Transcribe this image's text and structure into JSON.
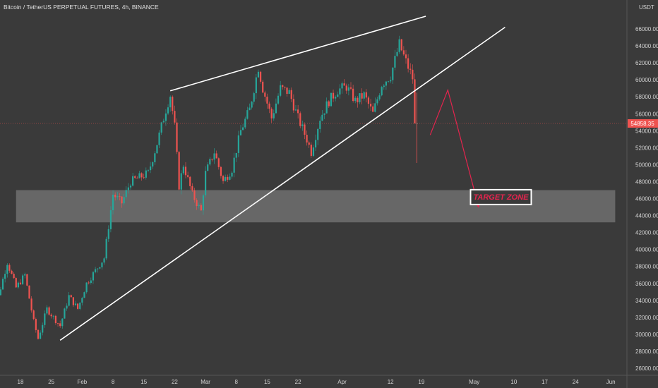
{
  "header": {
    "title": "Bitcoin / TetherUS PERPETUAL FUTURES, 4h, BINANCE"
  },
  "colors": {
    "background": "#3a3a3a",
    "up": "#26a69a",
    "down": "#ef5350",
    "trendline": "#ffffff",
    "arrow": "#e5244e",
    "zone_fill": "#777777",
    "price_label": "#ef5350"
  },
  "chart_data": {
    "type": "candlestick",
    "title": "Bitcoin / TetherUS PERPETUAL FUTURES, 4h, BINANCE",
    "ylabel": "USDT",
    "ylim": [
      25000,
      68000
    ],
    "y_ticks": [
      "26000.00",
      "28000.00",
      "30000.00",
      "32000.00",
      "34000.00",
      "36000.00",
      "38000.00",
      "40000.00",
      "42000.00",
      "44000.00",
      "46000.00",
      "48000.00",
      "50000.00",
      "52000.00",
      "54000.00",
      "56000.00",
      "58000.00",
      "60000.00",
      "62000.00",
      "64000.00",
      "66000.00"
    ],
    "x_ticks": [
      "18",
      "25",
      "Feb",
      "8",
      "15",
      "22",
      "Mar",
      "8",
      "15",
      "22",
      "Apr",
      "12",
      "19",
      "May",
      "10",
      "17",
      "24",
      "Jun"
    ],
    "current_price": "54858.35",
    "price_path": [
      [
        "Jan 11",
        39500
      ],
      [
        "Jan 13",
        34500
      ],
      [
        "Jan 15",
        38500
      ],
      [
        "Jan 17",
        35500
      ],
      [
        "Jan 19",
        37000
      ],
      [
        "Jan 21",
        31500
      ],
      [
        "Jan 22",
        29500
      ],
      [
        "Jan 24",
        33000
      ],
      [
        "Jan 27",
        31000
      ],
      [
        "Jan 29",
        34500
      ],
      [
        "Jan 31",
        33000
      ],
      [
        "Feb 2",
        36000
      ],
      [
        "Feb 4",
        37500
      ],
      [
        "Feb 6",
        39000
      ],
      [
        "Feb 8",
        46500
      ],
      [
        "Feb 10",
        45500
      ],
      [
        "Feb 12",
        48000
      ],
      [
        "Feb 14",
        48500
      ],
      [
        "Feb 16",
        49000
      ],
      [
        "Feb 18",
        52500
      ],
      [
        "Feb 20",
        56500
      ],
      [
        "Feb 21",
        58200
      ],
      [
        "Feb 22",
        54500
      ],
      [
        "Feb 23",
        47500
      ],
      [
        "Feb 24",
        50000
      ],
      [
        "Feb 26",
        46500
      ],
      [
        "Feb 28",
        44500
      ],
      [
        "Mar 1",
        49000
      ],
      [
        "Mar 3",
        51500
      ],
      [
        "Mar 5",
        48000
      ],
      [
        "Mar 7",
        49500
      ],
      [
        "Mar 9",
        54000
      ],
      [
        "Mar 11",
        56500
      ],
      [
        "Mar 13",
        61500
      ],
      [
        "Mar 14",
        59000
      ],
      [
        "Mar 16",
        55500
      ],
      [
        "Mar 18",
        59000
      ],
      [
        "Mar 20",
        58500
      ],
      [
        "Mar 22",
        55500
      ],
      [
        "Mar 24",
        53000
      ],
      [
        "Mar 25",
        51500
      ],
      [
        "Mar 27",
        55500
      ],
      [
        "Mar 29",
        57500
      ],
      [
        "Mar 31",
        58800
      ],
      [
        "Apr 2",
        59200
      ],
      [
        "Apr 4",
        57500
      ],
      [
        "Apr 6",
        58200
      ],
      [
        "Apr 8",
        56000
      ],
      [
        "Apr 10",
        59500
      ],
      [
        "Apr 12",
        60500
      ],
      [
        "Apr 14",
        64200
      ],
      [
        "Apr 15",
        62800
      ],
      [
        "Apr 16",
        61500
      ],
      [
        "Apr 17",
        60200
      ],
      [
        "Apr 18",
        54858
      ]
    ],
    "annotations": [
      {
        "type": "trendline",
        "from": [
          "Feb 21",
          58700
        ],
        "to": [
          "Apr 20",
          67500
        ]
      },
      {
        "type": "trendline",
        "from": [
          "Jan 27",
          29300
        ],
        "to": [
          "May 8",
          66200
        ]
      },
      {
        "type": "arrow",
        "points": [
          [
            "Apr 21",
            53500
          ],
          [
            "Apr 25",
            58800
          ],
          [
            "May 2",
            45000
          ]
        ]
      },
      {
        "type": "zone",
        "y_range": [
          43200,
          47000
        ],
        "x_range": [
          "Jan 17",
          "Jun 2"
        ],
        "label": "TARGET ZONE"
      }
    ]
  }
}
